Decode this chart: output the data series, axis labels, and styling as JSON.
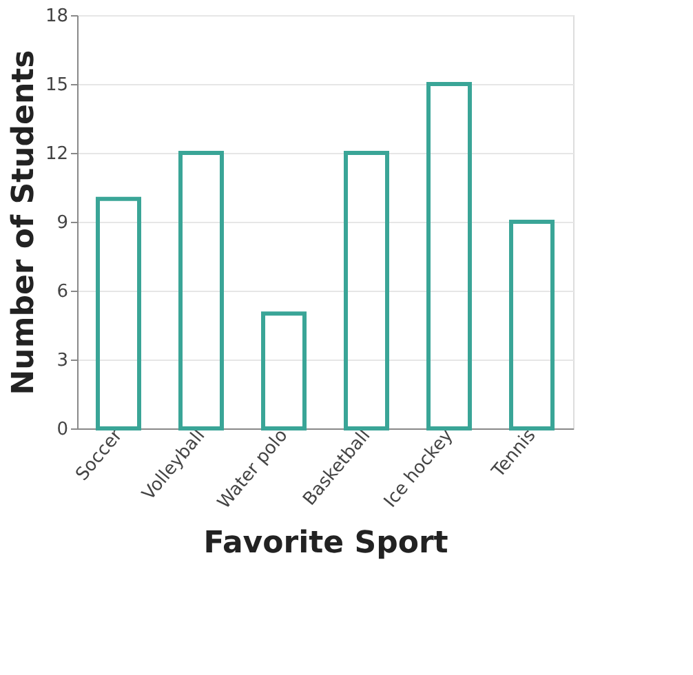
{
  "chart_data": {
    "type": "bar",
    "xlabel": "Favorite Sport",
    "ylabel": "Number of Students",
    "categories": [
      "Soccer",
      "Volleyball",
      "Water polo",
      "Basketball",
      "Ice hockey",
      "Tennis"
    ],
    "values": [
      10,
      12,
      5,
      12,
      15,
      9
    ],
    "color": "#3aa597",
    "ylim": [
      0,
      18
    ],
    "yticks": [
      0,
      3,
      6,
      9,
      12,
      15,
      18
    ],
    "grid": "y"
  }
}
